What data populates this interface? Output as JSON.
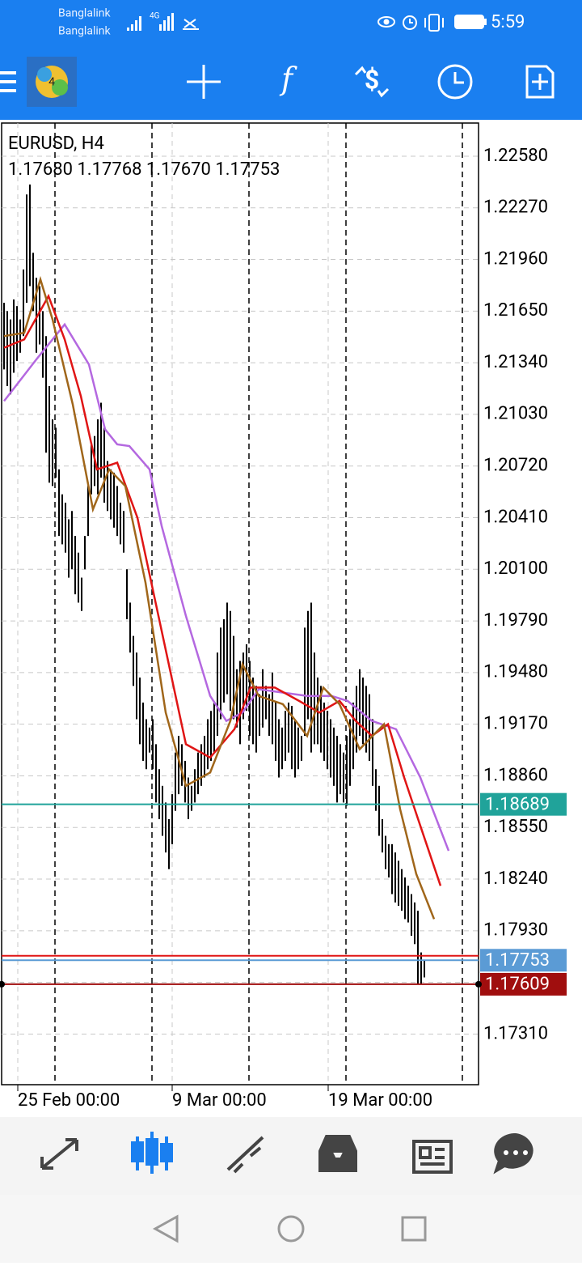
{
  "status_bar": {
    "carrier_1": "Banglalink",
    "carrier_2": "Banglalink",
    "network": "4G",
    "time": "5:59"
  },
  "chart_data": {
    "type": "ohlc",
    "title": "EURUSD, H4",
    "ohlc_text": "1.17680 1.17768 1.17670 1.17753",
    "bar_color": "#000000",
    "high": [
      1.217,
      1.2165,
      1.216,
      1.2172,
      1.2168,
      1.216,
      1.219,
      1.2235,
      1.2241,
      1.22,
      1.2185,
      1.218,
      1.2165,
      1.215,
      1.212,
      1.21,
      1.2095,
      1.207,
      1.2055,
      1.205,
      1.204,
      1.2045,
      1.203,
      1.202,
      1.2005,
      1.203,
      1.206,
      1.2085,
      1.209,
      1.21,
      1.211,
      1.2095,
      1.2075,
      1.207,
      1.2068,
      1.206,
      1.205,
      1.2045,
      1.201,
      1.199,
      1.197,
      1.196,
      1.1945,
      1.193,
      1.192,
      1.1915,
      1.192,
      1.1905,
      1.189,
      1.188,
      1.187,
      1.186,
      1.1875,
      1.19,
      1.191,
      1.1905,
      1.1895,
      1.1885,
      1.188,
      1.189,
      1.19,
      1.1905,
      1.191,
      1.192,
      1.1925,
      1.193,
      1.196,
      1.1975,
      1.198,
      1.199,
      1.1985,
      1.197,
      1.195,
      1.1955,
      1.196,
      1.1965,
      1.1955,
      1.1945,
      1.194,
      1.1935,
      1.195,
      1.194,
      1.1935,
      1.1948,
      1.193,
      1.192,
      1.1915,
      1.1925,
      1.193,
      1.1928,
      1.192,
      1.1915,
      1.191,
      1.1975,
      1.1985,
      1.199,
      1.196,
      1.1945,
      1.194,
      1.193,
      1.1925,
      1.192,
      1.1915,
      1.191,
      1.1905,
      1.19,
      1.191,
      1.192,
      1.193,
      1.194,
      1.195,
      1.1945,
      1.194,
      1.1935,
      1.192,
      1.189,
      1.188,
      1.186,
      1.185,
      1.1845,
      1.1845,
      1.184,
      1.1835,
      1.183,
      1.1825,
      1.182,
      1.1815,
      1.181,
      1.1805,
      1.178,
      1.1775
    ],
    "low": [
      1.213,
      1.212,
      1.2115,
      1.2128,
      1.2135,
      1.214,
      1.215,
      1.217,
      1.218,
      1.2165,
      1.214,
      1.2145,
      1.2125,
      1.208,
      1.2062,
      1.206,
      1.2065,
      1.203,
      1.2025,
      1.202,
      1.2005,
      1.201,
      1.1995,
      1.199,
      1.1985,
      1.201,
      1.203,
      1.2055,
      1.206,
      1.2055,
      1.2065,
      1.205,
      1.2045,
      1.204,
      1.2035,
      1.203,
      1.2025,
      1.202,
      1.198,
      1.196,
      1.194,
      1.192,
      1.1905,
      1.1895,
      1.189,
      1.19,
      1.189,
      1.187,
      1.186,
      1.185,
      1.184,
      1.183,
      1.1845,
      1.1865,
      1.1875,
      1.188,
      1.187,
      1.186,
      1.1865,
      1.187,
      1.1875,
      1.188,
      1.1885,
      1.189,
      1.1895,
      1.19,
      1.191,
      1.192,
      1.193,
      1.1935,
      1.1925,
      1.192,
      1.1915,
      1.1905,
      1.192,
      1.1925,
      1.191,
      1.1905,
      1.19,
      1.191,
      1.1915,
      1.192,
      1.191,
      1.1905,
      1.1895,
      1.1885,
      1.189,
      1.1895,
      1.19,
      1.189,
      1.1885,
      1.189,
      1.1895,
      1.191,
      1.192,
      1.19,
      1.1905,
      1.1905,
      1.19,
      1.1895,
      1.189,
      1.1885,
      1.188,
      1.187,
      1.1875,
      1.187,
      1.1868,
      1.188,
      1.189,
      1.19,
      1.191,
      1.1905,
      1.19,
      1.1895,
      1.188,
      1.1865,
      1.185,
      1.184,
      1.183,
      1.1825,
      1.1815,
      1.181,
      1.1808,
      1.1805,
      1.18,
      1.1798,
      1.179,
      1.1785,
      1.1761,
      1.1761,
      1.1765
    ],
    "lines": [
      {
        "color": "#b468e0",
        "x": [
          0,
          10,
          18.75,
          26.25,
          31.25,
          35,
          38.75,
          45,
          48.75,
          56.25,
          63.75,
          68.75,
          73.75,
          78.75,
          86.25,
          93.75,
          101.25,
          106.25,
          113.75,
          121.25,
          128.75,
          137.5
        ],
        "values": [
          1.2111,
          1.2136,
          1.2157,
          1.2133,
          1.2094,
          1.2085,
          1.2084,
          1.207,
          1.2036,
          1.1982,
          1.1934,
          1.1919,
          1.1924,
          1.1938,
          1.1936,
          1.1934,
          1.1934,
          1.1931,
          1.1919,
          1.1914,
          1.1885,
          1.1841
        ]
      },
      {
        "color": "#e01515",
        "x": [
          0,
          6.25,
          13.75,
          18.75,
          23.75,
          28.75,
          35,
          41.25,
          48.75,
          56.25,
          63.75,
          71.25,
          76.25,
          83.75,
          91.25,
          97.5,
          103.75,
          108.75,
          113.75,
          118.75,
          123.75,
          128.75,
          135
        ],
        "values": [
          1.2143,
          1.2148,
          1.2174,
          1.2148,
          1.2114,
          1.207,
          1.2074,
          1.2041,
          1.1973,
          1.1905,
          1.1897,
          1.1914,
          1.1939,
          1.1939,
          1.1931,
          1.1924,
          1.1931,
          1.1919,
          1.191,
          1.1917,
          1.1885,
          1.1856,
          1.182
        ]
      },
      {
        "color": "#a0661a",
        "x": [
          0,
          6.25,
          11.25,
          15,
          21.25,
          27.5,
          32.5,
          37.5,
          43.75,
          50,
          56.25,
          63.75,
          70,
          73.75,
          78.75,
          86.25,
          93.75,
          98.75,
          103.75,
          110,
          117.5,
          122.5,
          127.5,
          133
        ],
        "values": [
          1.215,
          1.2152,
          1.2184,
          1.216,
          1.2109,
          1.2046,
          1.207,
          1.206,
          1.2002,
          1.1924,
          1.188,
          1.1888,
          1.1919,
          1.1953,
          1.1934,
          1.1929,
          1.191,
          1.1939,
          1.1929,
          1.1902,
          1.1917,
          1.1866,
          1.1827,
          1.18
        ]
      }
    ],
    "levels": [
      {
        "value": 1.18689,
        "color": "#20a39a"
      },
      {
        "value": 1.1778,
        "color": "#e01515"
      },
      {
        "value": 1.17753,
        "color": "#5b9bd5"
      },
      {
        "value": 1.17609,
        "color": "#a00e0e"
      }
    ],
    "level_labels": [
      {
        "level": 0,
        "label": "1.18689"
      },
      {
        "level": 2,
        "label": "1.17753"
      },
      {
        "level": 3,
        "label": "1.17609"
      }
    ],
    "separators": [
      15.75,
      45.75,
      75.75,
      105.75,
      141.75
    ],
    "xlim": [
      -0.75,
      146.75
    ],
    "xticks": [
      {
        "value": 4.25,
        "label": "25 Feb 00:00"
      },
      {
        "value": 52,
        "label": "9 Mar 00:00"
      },
      {
        "value": 100.25,
        "label": "19 Mar 00:00"
      }
    ],
    "ylim": [
      1.17006,
      1.22779
    ],
    "yticks": [
      {
        "value": 1.2258,
        "label": "1.22580"
      },
      {
        "value": 1.2227,
        "label": "1.22270"
      },
      {
        "value": 1.2196,
        "label": "1.21960"
      },
      {
        "value": 1.2165,
        "label": "1.21650"
      },
      {
        "value": 1.2134,
        "label": "1.21340"
      },
      {
        "value": 1.2103,
        "label": "1.21030"
      },
      {
        "value": 1.2072,
        "label": "1.20720"
      },
      {
        "value": 1.2041,
        "label": "1.20410"
      },
      {
        "value": 1.201,
        "label": "1.20100"
      },
      {
        "value": 1.1979,
        "label": "1.19790"
      },
      {
        "value": 1.1948,
        "label": "1.19480"
      },
      {
        "value": 1.1917,
        "label": "1.19170"
      },
      {
        "value": 1.1886,
        "label": "1.18860"
      },
      {
        "value": 1.1855,
        "label": "1.18550"
      },
      {
        "value": 1.1824,
        "label": "1.18240"
      },
      {
        "value": 1.1793,
        "label": "1.17930"
      },
      {
        "value": 1.1762,
        "label": "1.17620"
      },
      {
        "value": 1.1731,
        "label": "1.17310"
      }
    ],
    "grid": true
  }
}
